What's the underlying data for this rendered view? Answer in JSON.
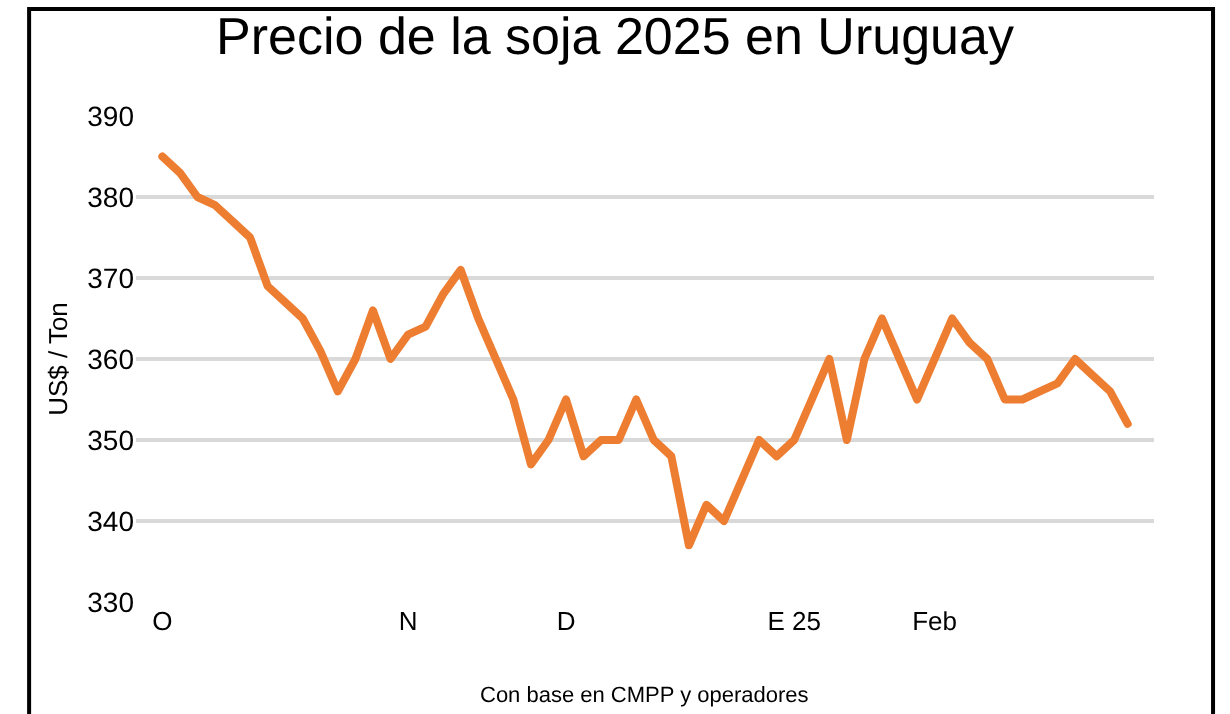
{
  "chart_data": {
    "type": "line",
    "title": "Precio de la soja 2025 en Uruguay",
    "ylabel": "US$ / Ton",
    "categories": [
      "O",
      null,
      null,
      null,
      null,
      null,
      null,
      null,
      null,
      null,
      null,
      null,
      null,
      null,
      "N",
      null,
      null,
      null,
      null,
      null,
      null,
      null,
      null,
      "D",
      null,
      null,
      null,
      null,
      null,
      null,
      null,
      null,
      null,
      null,
      null,
      null,
      "E 25",
      null,
      null,
      null,
      null,
      null,
      null,
      null,
      "Feb",
      null,
      null,
      null,
      null,
      null,
      null,
      null,
      null,
      null,
      null,
      null
    ],
    "series": [
      {
        "color": "#ed7d31",
        "values": [
          385,
          383,
          380,
          379,
          377,
          375,
          369,
          367,
          365,
          361,
          356,
          360,
          366,
          360,
          363,
          364,
          368,
          371,
          365,
          360,
          355,
          347,
          350,
          355,
          348,
          350,
          350,
          355,
          350,
          348,
          337,
          342,
          340,
          345,
          350,
          348,
          350,
          355,
          360,
          350,
          360,
          365,
          360,
          355,
          360,
          365,
          362,
          360,
          355,
          355,
          356,
          357,
          360,
          358,
          356,
          352
        ]
      }
    ],
    "ylim": [
      330,
      390
    ],
    "yticks": [
      330,
      340,
      350,
      360,
      370,
      380,
      390
    ],
    "grid": "y",
    "marker": "none",
    "line_style": "solid",
    "annotations": [
      "Con base en CMPP y operadores"
    ]
  }
}
